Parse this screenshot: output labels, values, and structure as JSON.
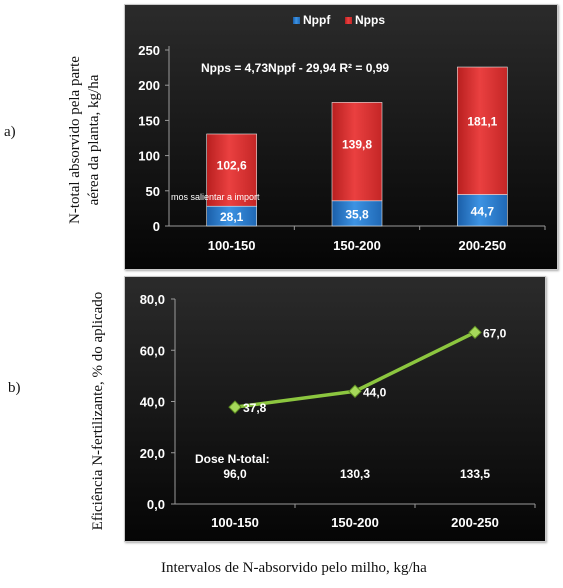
{
  "panels": [
    {
      "label": "a)",
      "ylabel_line1": "N-total absorvido pela parte",
      "ylabel_line2": "aérea da planta, kg/ha"
    },
    {
      "label": "b)",
      "ylabel_line1": "Eficiência N-fertilizante, % do aplicado",
      "ylabel_line2": ""
    }
  ],
  "shared_xlabel": "Intervalos de N-absorvido pelo milho, kg/ha",
  "chart_data": [
    {
      "type": "bar",
      "stacked": true,
      "categories": [
        "100-150",
        "150-200",
        "200-250"
      ],
      "series": [
        {
          "name": "Nppf",
          "values": [
            28.1,
            35.8,
            44.7
          ],
          "labels": [
            "28,1",
            "35,8",
            "44,7"
          ],
          "color": "#2f7fd3"
        },
        {
          "name": "Npps",
          "values": [
            102.6,
            139.8,
            181.1
          ],
          "labels": [
            "102,6",
            "139,8",
            "181,1"
          ],
          "color": "#e03232"
        }
      ],
      "ylim": [
        0,
        250
      ],
      "yticks": [
        "0",
        "50",
        "100",
        "150",
        "200",
        "250"
      ],
      "annotation": "Npps = 4,73Nppf - 29,94  R² = 0,99",
      "overlay_text": "mos salientar a import",
      "legend_position": "top-right",
      "grid": false,
      "background": "#000000"
    },
    {
      "type": "line",
      "categories": [
        "100-150",
        "150-200",
        "200-250"
      ],
      "values": [
        37.8,
        44.0,
        67.0
      ],
      "labels": [
        "37,8",
        "44,0",
        "67,0"
      ],
      "ylim": [
        0,
        80
      ],
      "yticks": [
        "0,0",
        "20,0",
        "40,0",
        "60,0",
        "80,0"
      ],
      "dose_title": "Dose N-total:",
      "dose_values": [
        "96,0",
        "130,3",
        "133,5"
      ],
      "line_color": "#8cc63f",
      "grid": false,
      "background": "#000000"
    }
  ]
}
